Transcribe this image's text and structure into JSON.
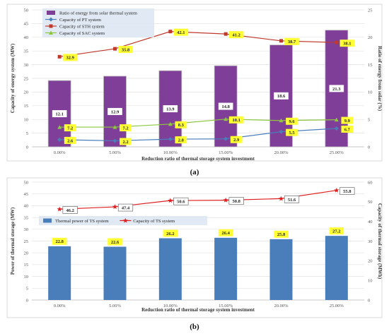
{
  "chart_data": [
    {
      "type": "bar",
      "panel_label": "(a)",
      "categories": [
        "0.00%",
        "5.00%",
        "10.00%",
        "15.00%",
        "20.00%",
        "25.00%"
      ],
      "xlabel": "Reduction ratio of thermal storage system investment",
      "ylabel": "Capacity of energy system (MW)",
      "ylabel_right": "Ratio of energy from solar (%)",
      "ylim": [
        0,
        50
      ],
      "yticks": [
        "0",
        "5",
        "10",
        "15",
        "20",
        "25",
        "30",
        "35",
        "40",
        "45",
        "50"
      ],
      "ylim_right": [
        0,
        25
      ],
      "yticks_right": [
        "0",
        "5",
        "10",
        "15",
        "20",
        "25"
      ],
      "grid": true,
      "legend_position": "top-left",
      "series": [
        {
          "name": "Ratio of energy from solar thermal system",
          "kind": "bar",
          "axis": "right",
          "color": "#7f3f98",
          "values": [
            12.1,
            12.9,
            13.9,
            14.8,
            18.6,
            21.3
          ],
          "labels": [
            "12.1",
            "12.9",
            "13.9",
            "14.8",
            "18.6",
            "21.3"
          ]
        },
        {
          "name": "Capacity of PT system",
          "kind": "line",
          "axis": "left",
          "color": "#4a7ebb",
          "marker": "diamond",
          "values": [
            2.6,
            2.2,
            2.8,
            2.9,
            5.5,
            6.7
          ],
          "labels": [
            "2.6",
            "2.2",
            "2.8",
            "2.9",
            "5.5",
            "6.7"
          ]
        },
        {
          "name": "Capacity of STH system",
          "kind": "line",
          "axis": "left",
          "color": "#c0392b",
          "marker": "square",
          "values": [
            32.9,
            35.8,
            42.1,
            41.2,
            38.7,
            38.1
          ],
          "labels": [
            "32.9",
            "35.8",
            "42.1",
            "41.2",
            "38.7",
            "38.1"
          ]
        },
        {
          "name": "Capacity of SAC system",
          "kind": "line",
          "axis": "left",
          "color": "#8dc63f",
          "marker": "triangle",
          "values": [
            7.2,
            7.2,
            8.3,
            10.1,
            9.6,
            9.9
          ],
          "labels": [
            "7.2",
            "7.2",
            "8.3",
            "10.1",
            "9.6",
            "9.9"
          ]
        }
      ]
    },
    {
      "type": "bar",
      "panel_label": "(b)",
      "categories": [
        "0.00%",
        "5.00%",
        "10.00%",
        "15.00%",
        "20.00%",
        "25.00%"
      ],
      "xlabel": "Reduction ratio of thermal storage system investment",
      "ylabel": "Power of thermal storage (MW)",
      "ylabel_right": "Capacity of thermal storage (MWh)",
      "ylim": [
        0,
        50
      ],
      "yticks": [
        "0",
        "5",
        "10",
        "15",
        "20",
        "25",
        "30",
        "35",
        "40",
        "45",
        "50"
      ],
      "ylim_right": [
        0,
        60
      ],
      "yticks_right": [
        "0",
        "10",
        "20",
        "30",
        "40",
        "50",
        "60"
      ],
      "grid": true,
      "legend_position": "top-left",
      "series": [
        {
          "name": "Thermal power of TS system",
          "kind": "bar",
          "axis": "left",
          "color": "#4a7ebb",
          "values": [
            22.8,
            22.6,
            26.2,
            26.4,
            25.8,
            27.2
          ],
          "labels": [
            "22.8",
            "22.6",
            "26.2",
            "26.4",
            "25.8",
            "27.2"
          ]
        },
        {
          "name": "Capacity of TS system",
          "kind": "line",
          "axis": "right",
          "color": "#e02020",
          "marker": "star",
          "values": [
            46.2,
            47.4,
            50.6,
            50.8,
            51.6,
            55.8
          ],
          "labels": [
            "46.2",
            "47.4",
            "50.6",
            "50.8",
            "51.6",
            "55.8"
          ]
        }
      ]
    }
  ]
}
